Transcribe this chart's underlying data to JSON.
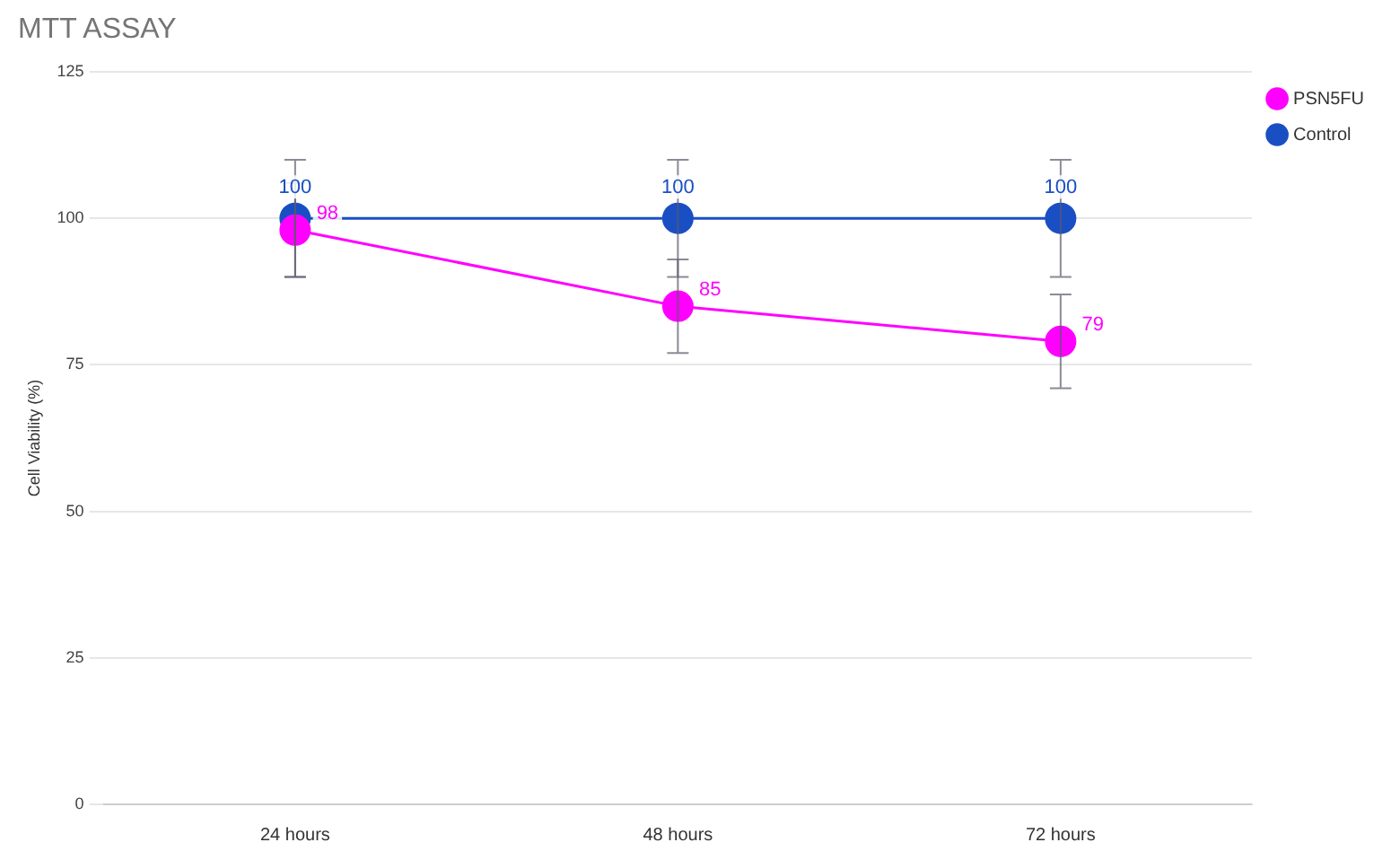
{
  "chart_data": {
    "type": "line",
    "title": "MTT ASSAY",
    "ylabel": "Cell Viability (%)",
    "categories": [
      "24 hours",
      "48 hours",
      "72 hours"
    ],
    "series": [
      {
        "name": "PSN5FU",
        "color": "#ff00ff",
        "values": [
          98,
          85,
          79
        ],
        "errors": [
          8,
          8,
          8
        ]
      },
      {
        "name": "Control",
        "color": "#1a4fc4",
        "values": [
          100,
          100,
          100
        ],
        "errors": [
          10,
          10,
          10
        ]
      }
    ],
    "ylim": [
      0,
      125
    ],
    "yticks": [
      0,
      25,
      50,
      75,
      100,
      125
    ],
    "grid": "y",
    "legend": "top right",
    "marker": "circle",
    "data_labels": true
  }
}
